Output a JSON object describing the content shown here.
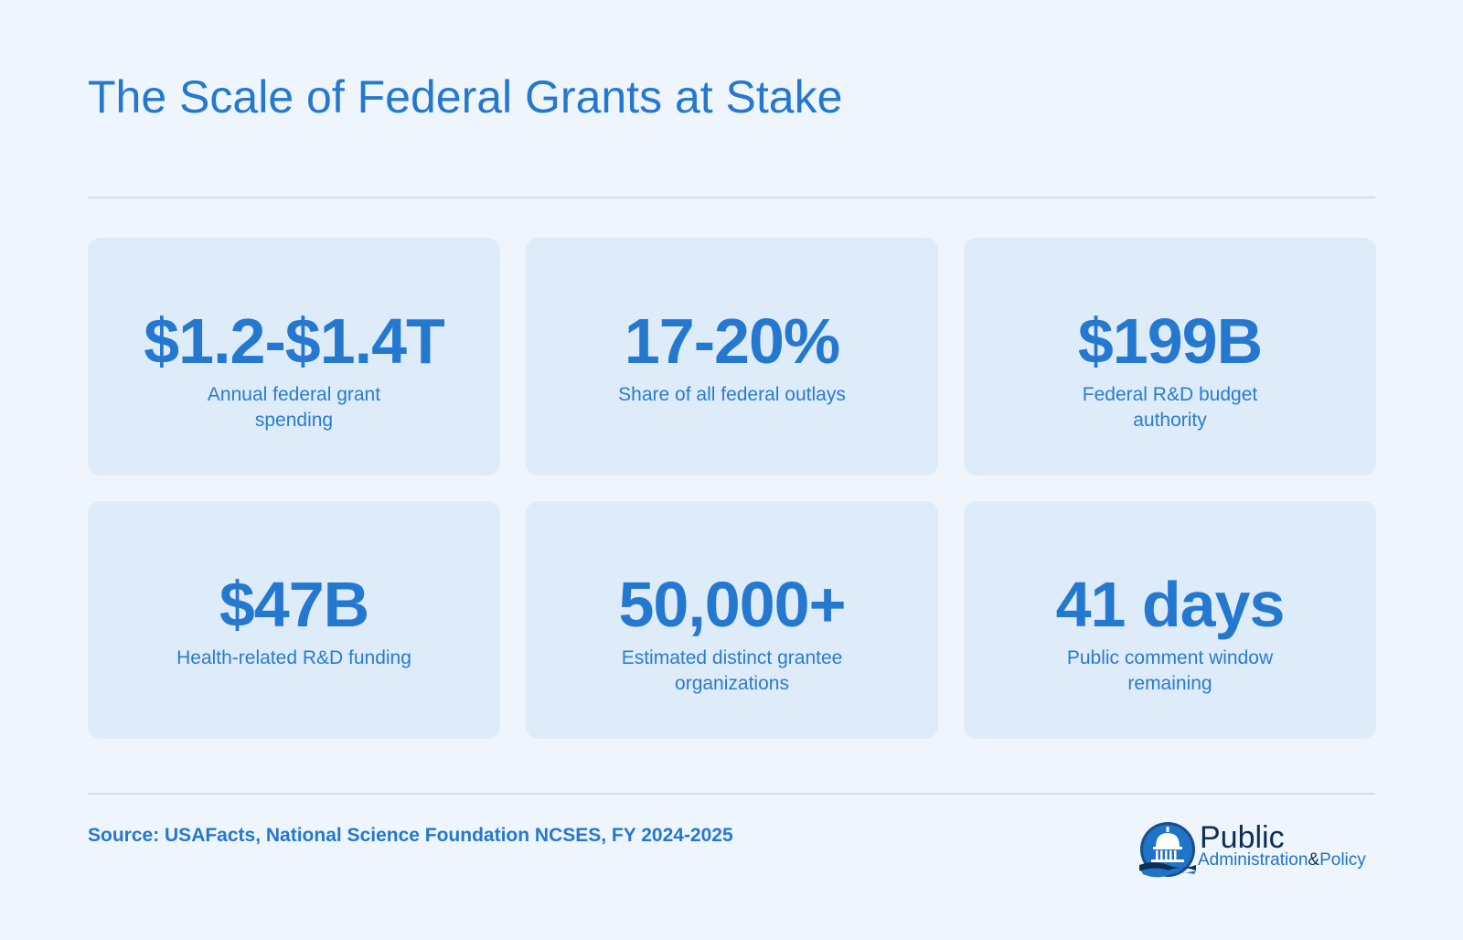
{
  "title": "The Scale of Federal Grants at Stake",
  "stats": [
    {
      "value": "$1.2-$1.4T",
      "label": "Annual federal grant spending"
    },
    {
      "value": "17-20%",
      "label": "Share of all federal outlays"
    },
    {
      "value": "$199B",
      "label": "Federal R&D budget authority"
    },
    {
      "value": "$47B",
      "label": "Health-related R&D funding"
    },
    {
      "value": "50,000+",
      "label": "Estimated distinct grantee organizations"
    },
    {
      "value": "41 days",
      "label": "Public comment window remaining"
    }
  ],
  "source": "Source: USAFacts, National Science Foundation NCSES, FY 2024-2025",
  "logo": {
    "line1": "Public",
    "line2_a": "Administration",
    "line2_amp": "&",
    "line2_b": "Policy",
    "icon": "capitol-dome-icon",
    "colors": {
      "navy": "#0f2f55",
      "blue": "#1f73c8"
    }
  },
  "colors": {
    "background": "#eef5fd",
    "card": "#deebf8",
    "accent": "#2578cf"
  }
}
